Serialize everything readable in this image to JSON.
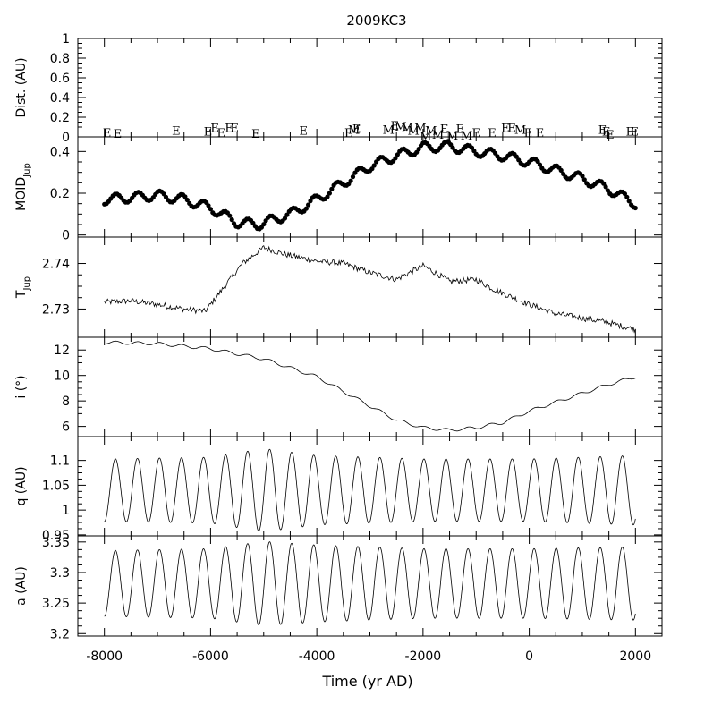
{
  "chart_data": {
    "type": "line",
    "title": "2009KC3",
    "xlabel": "Time (yr AD)",
    "xlim": [
      -8500,
      2500
    ],
    "xticks": [
      -8000,
      -6000,
      -4000,
      -2000,
      0,
      2000
    ],
    "xtick_labels": [
      "-8000",
      "-6000",
      "-4000",
      "-2000",
      "0",
      "2000"
    ],
    "panels": [
      {
        "id": "dist",
        "ylabel_main": "Dist. (AU)",
        "ylabel_sub": "",
        "ylim": [
          0,
          1
        ],
        "yticks": [
          0,
          0.2,
          0.4,
          0.6,
          0.8,
          1
        ],
        "ytick_labels": [
          "0",
          "0.2",
          "0.4",
          "0.6",
          "0.8",
          "1"
        ],
        "encounters": [
          {
            "t": -7950,
            "d": 0.02,
            "label": "E"
          },
          {
            "t": -7750,
            "d": 0.01,
            "label": "E"
          },
          {
            "t": -6650,
            "d": 0.04,
            "label": "E"
          },
          {
            "t": -6050,
            "d": 0.03,
            "label": "E"
          },
          {
            "t": -5920,
            "d": 0.07,
            "label": "E"
          },
          {
            "t": -5800,
            "d": 0.02,
            "label": "E"
          },
          {
            "t": -5650,
            "d": 0.07,
            "label": "E"
          },
          {
            "t": -5550,
            "d": 0.07,
            "label": "E"
          },
          {
            "t": -5150,
            "d": 0.01,
            "label": "E"
          },
          {
            "t": -4250,
            "d": 0.04,
            "label": "E"
          },
          {
            "t": -3400,
            "d": 0.02,
            "label": "E"
          },
          {
            "t": -3300,
            "d": 0.05,
            "label": "M"
          },
          {
            "t": -3250,
            "d": 0.06,
            "label": "E"
          },
          {
            "t": -2650,
            "d": 0.05,
            "label": "M"
          },
          {
            "t": -2530,
            "d": 0.09,
            "label": "E"
          },
          {
            "t": -2420,
            "d": 0.08,
            "label": "M"
          },
          {
            "t": -2300,
            "d": 0.07,
            "label": "M"
          },
          {
            "t": -2180,
            "d": 0.04,
            "label": "M"
          },
          {
            "t": -2050,
            "d": 0.07,
            "label": "M"
          },
          {
            "t": -1950,
            "d": -0.02,
            "label": "M"
          },
          {
            "t": -1850,
            "d": 0.04,
            "label": "M"
          },
          {
            "t": -1720,
            "d": 0.0,
            "label": "M"
          },
          {
            "t": -1600,
            "d": 0.06,
            "label": "E"
          },
          {
            "t": -1450,
            "d": -0.01,
            "label": "M"
          },
          {
            "t": -1300,
            "d": 0.06,
            "label": "E"
          },
          {
            "t": -1180,
            "d": -0.01,
            "label": "M"
          },
          {
            "t": -1000,
            "d": 0.02,
            "label": "E"
          },
          {
            "t": -700,
            "d": 0.02,
            "label": "E"
          },
          {
            "t": -450,
            "d": 0.07,
            "label": "E"
          },
          {
            "t": -330,
            "d": 0.07,
            "label": "E"
          },
          {
            "t": -170,
            "d": 0.05,
            "label": "M"
          },
          {
            "t": -20,
            "d": 0.02,
            "label": "E"
          },
          {
            "t": 200,
            "d": 0.02,
            "label": "E"
          },
          {
            "t": 1380,
            "d": 0.05,
            "label": "E"
          },
          {
            "t": 1450,
            "d": 0.03,
            "label": "E"
          },
          {
            "t": 1520,
            "d": 0.0,
            "label": "E"
          },
          {
            "t": 1900,
            "d": 0.03,
            "label": "E"
          },
          {
            "t": 1980,
            "d": 0.03,
            "label": "E"
          }
        ]
      },
      {
        "id": "moid",
        "ylabel_main": "MOID",
        "ylabel_sub": "Jup",
        "ylim": [
          -0.01,
          0.47
        ],
        "yticks": [
          0,
          0.2,
          0.4
        ],
        "ytick_labels": [
          "0",
          "0.2",
          "0.4"
        ],
        "trend_knots": [
          [
            -8000,
            0.17
          ],
          [
            -7000,
            0.19
          ],
          [
            -6500,
            0.17
          ],
          [
            -6000,
            0.13
          ],
          [
            -5500,
            0.06
          ],
          [
            -5100,
            0.05
          ],
          [
            -4500,
            0.1
          ],
          [
            -4000,
            0.17
          ],
          [
            -3500,
            0.25
          ],
          [
            -3000,
            0.33
          ],
          [
            -2500,
            0.38
          ],
          [
            -2000,
            0.42
          ],
          [
            -1500,
            0.425
          ],
          [
            -1000,
            0.4
          ],
          [
            -500,
            0.38
          ],
          [
            0,
            0.35
          ],
          [
            500,
            0.31
          ],
          [
            1000,
            0.27
          ],
          [
            1500,
            0.22
          ],
          [
            2000,
            0.15
          ]
        ],
        "osc_amp": 0.023,
        "osc_period_yr": 415,
        "sample_step_yr": 40
      },
      {
        "id": "tjup",
        "ylabel_main": "T",
        "ylabel_sub": "Jup",
        "ylim": [
          2.7238,
          2.7458
        ],
        "yticks": [
          2.73,
          2.74
        ],
        "ytick_labels": [
          "2.73",
          "2.74"
        ],
        "trend_knots": [
          [
            -8000,
            2.7315
          ],
          [
            -7500,
            2.7318
          ],
          [
            -7000,
            2.731
          ],
          [
            -6500,
            2.73
          ],
          [
            -6100,
            2.7295
          ],
          [
            -5900,
            2.7325
          ],
          [
            -5700,
            2.7355
          ],
          [
            -5400,
            2.74
          ],
          [
            -5000,
            2.7435
          ],
          [
            -4600,
            2.742
          ],
          [
            -4000,
            2.7405
          ],
          [
            -3500,
            2.74
          ],
          [
            -3000,
            2.738
          ],
          [
            -2500,
            2.7365
          ],
          [
            -2000,
            2.7395
          ],
          [
            -1700,
            2.7375
          ],
          [
            -1500,
            2.736
          ],
          [
            -1000,
            2.7365
          ],
          [
            -700,
            2.7345
          ],
          [
            0,
            2.731
          ],
          [
            500,
            2.729
          ],
          [
            1000,
            2.728
          ],
          [
            1500,
            2.727
          ],
          [
            2000,
            2.7255
          ]
        ],
        "noise_amp": 0.00065,
        "sample_step_yr": 20
      },
      {
        "id": "inc",
        "ylabel_main": "i (°)",
        "ylabel_sub": "",
        "ylim": [
          5.2,
          13.0
        ],
        "yticks": [
          6,
          8,
          10,
          12
        ],
        "ytick_labels": [
          "6",
          "8",
          "10",
          "12"
        ],
        "trend_knots": [
          [
            -8000,
            12.6
          ],
          [
            -7000,
            12.5
          ],
          [
            -6000,
            12.1
          ],
          [
            -5000,
            11.3
          ],
          [
            -4000,
            9.9
          ],
          [
            -3000,
            7.6
          ],
          [
            -2500,
            6.5
          ],
          [
            -2000,
            5.9
          ],
          [
            -1500,
            5.7
          ],
          [
            -1000,
            5.9
          ],
          [
            -500,
            6.3
          ],
          [
            0,
            7.2
          ],
          [
            500,
            7.9
          ],
          [
            1000,
            8.6
          ],
          [
            1500,
            9.3
          ],
          [
            2000,
            9.9
          ]
        ],
        "osc_amp": 0.12,
        "osc_period_yr": 415,
        "sample_step_yr": 20
      },
      {
        "id": "q",
        "ylabel_main": "q (AU)",
        "ylabel_sub": "",
        "ylim": [
          0.948,
          1.148
        ],
        "yticks": [
          0.95,
          1,
          1.05,
          1.1
        ],
        "ytick_labels": [
          "0.95",
          "1",
          "1.05",
          "1.1"
        ],
        "osc_mean": 1.04,
        "osc_amp": 0.07,
        "osc_period_yr": 415,
        "amp_knots": [
          [
            -8000,
            0.9
          ],
          [
            -6000,
            0.95
          ],
          [
            -5000,
            1.2
          ],
          [
            -4000,
            1.0
          ],
          [
            -2000,
            0.9
          ],
          [
            0,
            0.9
          ],
          [
            2000,
            1.0
          ]
        ],
        "sample_step_yr": 10
      },
      {
        "id": "a",
        "ylabel_main": "a (AU)",
        "ylabel_sub": "",
        "ylim": [
          3.196,
          3.36
        ],
        "yticks": [
          3.2,
          3.25,
          3.3,
          3.35
        ],
        "ytick_labels": [
          "3.2",
          "3.25",
          "3.3",
          "3.35"
        ],
        "osc_mean": 3.282,
        "osc_amp": 0.06,
        "osc_period_yr": 415,
        "amp_knots": [
          [
            -8000,
            0.9
          ],
          [
            -6000,
            0.95
          ],
          [
            -5000,
            1.15
          ],
          [
            -4000,
            1.05
          ],
          [
            -2000,
            0.95
          ],
          [
            0,
            0.95
          ],
          [
            2000,
            1.0
          ]
        ],
        "sample_step_yr": 10
      }
    ]
  }
}
